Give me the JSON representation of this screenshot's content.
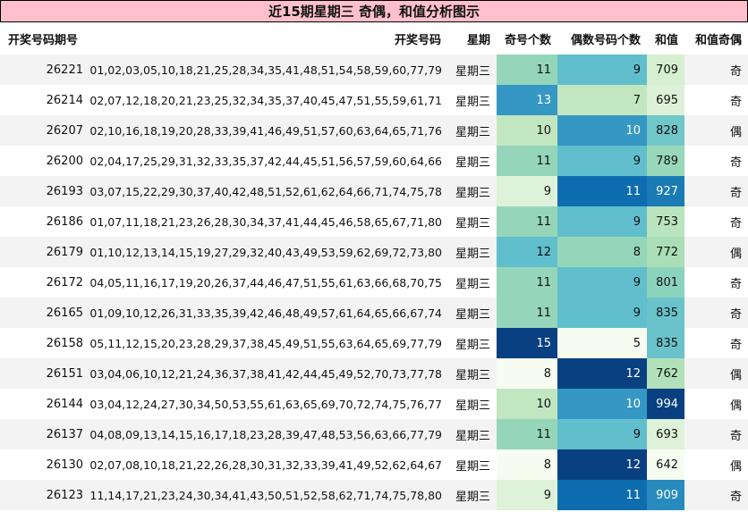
{
  "title": "近15期星期三 奇偶，和值分析图示",
  "columns": [
    "开奖号码期号",
    "开奖号码",
    "星期",
    "奇号个数",
    "偶数号码个数",
    "和值",
    "和值奇偶"
  ],
  "rows": [
    {
      "issue": "26221",
      "numbers": "01,02,03,05,10,18,21,25,28,34,35,41,48,51,54,58,59,60,77,79",
      "weekday": "星期三",
      "odd": 11,
      "even": 9,
      "sum": 709,
      "parity": "奇"
    },
    {
      "issue": "26214",
      "numbers": "02,07,12,18,20,21,23,25,32,34,35,37,40,45,47,51,55,59,61,71",
      "weekday": "星期三",
      "odd": 13,
      "even": 7,
      "sum": 695,
      "parity": "奇"
    },
    {
      "issue": "26207",
      "numbers": "02,10,16,18,19,20,28,33,39,41,46,49,51,57,60,63,64,65,71,76",
      "weekday": "星期三",
      "odd": 10,
      "even": 10,
      "sum": 828,
      "parity": "偶"
    },
    {
      "issue": "26200",
      "numbers": "02,04,17,25,29,31,32,33,35,37,42,44,45,51,56,57,59,60,64,66",
      "weekday": "星期三",
      "odd": 11,
      "even": 9,
      "sum": 789,
      "parity": "奇"
    },
    {
      "issue": "26193",
      "numbers": "03,07,15,22,29,30,37,40,42,48,51,52,61,62,64,66,71,74,75,78",
      "weekday": "星期三",
      "odd": 9,
      "even": 11,
      "sum": 927,
      "parity": "奇"
    },
    {
      "issue": "26186",
      "numbers": "01,07,11,18,21,23,26,28,30,34,37,41,44,45,46,58,65,67,71,80",
      "weekday": "星期三",
      "odd": 11,
      "even": 9,
      "sum": 753,
      "parity": "奇"
    },
    {
      "issue": "26179",
      "numbers": "01,10,12,13,14,15,19,27,29,32,40,43,49,53,59,62,69,72,73,80",
      "weekday": "星期三",
      "odd": 12,
      "even": 8,
      "sum": 772,
      "parity": "偶"
    },
    {
      "issue": "26172",
      "numbers": "04,05,11,16,17,19,20,26,37,44,46,47,51,55,61,63,66,68,70,75",
      "weekday": "星期三",
      "odd": 11,
      "even": 9,
      "sum": 801,
      "parity": "奇"
    },
    {
      "issue": "26165",
      "numbers": "01,09,10,12,26,31,33,35,39,42,46,48,49,57,61,64,65,66,67,74",
      "weekday": "星期三",
      "odd": 11,
      "even": 9,
      "sum": 835,
      "parity": "奇"
    },
    {
      "issue": "26158",
      "numbers": "05,11,12,15,20,23,28,29,37,38,45,49,51,55,63,64,65,69,77,79",
      "weekday": "星期三",
      "odd": 15,
      "even": 5,
      "sum": 835,
      "parity": "奇"
    },
    {
      "issue": "26151",
      "numbers": "03,04,06,10,12,21,24,36,37,38,41,42,44,45,49,52,70,73,77,78",
      "weekday": "星期三",
      "odd": 8,
      "even": 12,
      "sum": 762,
      "parity": "偶"
    },
    {
      "issue": "26144",
      "numbers": "03,04,12,24,27,30,34,50,53,55,61,63,65,69,70,72,74,75,76,77",
      "weekday": "星期三",
      "odd": 10,
      "even": 10,
      "sum": 994,
      "parity": "偶"
    },
    {
      "issue": "26137",
      "numbers": "04,08,09,13,14,15,16,17,18,23,28,39,47,48,53,56,63,66,77,79",
      "weekday": "星期三",
      "odd": 11,
      "even": 9,
      "sum": 693,
      "parity": "奇"
    },
    {
      "issue": "26130",
      "numbers": "02,07,08,10,18,21,22,26,28,30,31,32,33,39,41,49,52,62,64,67",
      "weekday": "星期三",
      "odd": 8,
      "even": 12,
      "sum": 642,
      "parity": "偶"
    },
    {
      "issue": "26123",
      "numbers": "11,14,17,21,23,24,30,34,41,43,50,51,52,58,62,71,74,75,78,80",
      "weekday": "星期三",
      "odd": 9,
      "even": 11,
      "sum": 909,
      "parity": "奇"
    }
  ],
  "color_scale": [
    "#f7fcf0",
    "#e0f3db",
    "#ccebc5",
    "#a8ddb5",
    "#7bccc4",
    "#4eb3d3",
    "#2b8cbe",
    "#0868ac",
    "#084081"
  ]
}
